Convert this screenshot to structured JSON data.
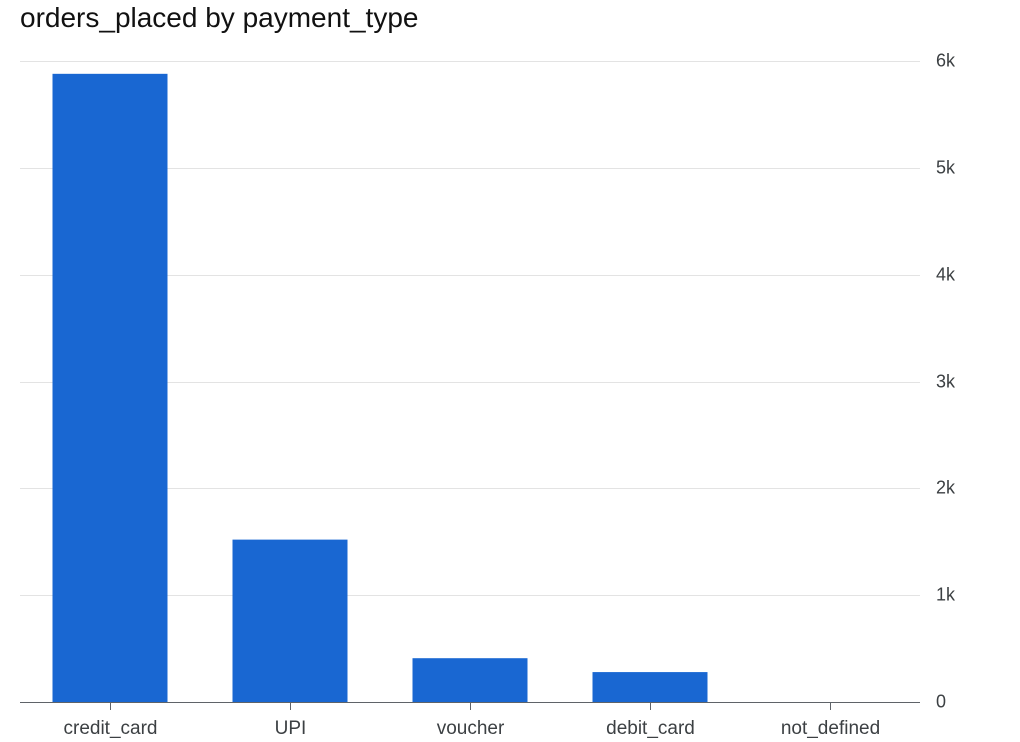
{
  "chart_data": {
    "type": "bar",
    "title": "orders_placed by payment_type",
    "xlabel": "",
    "ylabel": "",
    "categories": [
      "credit_card",
      "UPI",
      "voucher",
      "debit_card",
      "not_defined"
    ],
    "values": [
      5880,
      1520,
      410,
      280,
      0
    ],
    "ylim": [
      0,
      6000
    ],
    "yticks": [
      0,
      1000,
      2000,
      3000,
      4000,
      5000,
      6000
    ],
    "ytick_labels": [
      "0",
      "1k",
      "2k",
      "3k",
      "4k",
      "5k",
      "6k"
    ],
    "y_axis_side": "right",
    "grid": true,
    "legend": "none",
    "bar_color": "#1967d2"
  }
}
